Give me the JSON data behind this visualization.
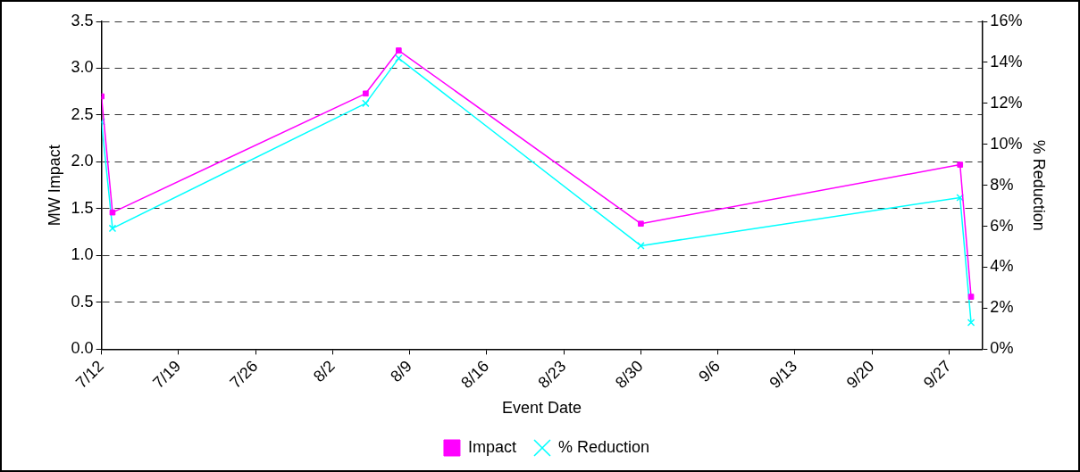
{
  "chart_data": {
    "type": "line",
    "xlabel": "Event Date",
    "ylabel": "MW Impact",
    "y2label": "% Reduction",
    "x": [
      "--07-12",
      "--07-13",
      "--08-05",
      "--08-08",
      "--08-30",
      "--09-28",
      "--09-29"
    ],
    "series": [
      {
        "name": "Impact",
        "color": "#ff00ff",
        "marker": "square",
        "values": [
          2.7,
          1.46,
          2.73,
          3.19,
          1.34,
          1.97,
          0.56
        ]
      },
      {
        "name": "% Reduction",
        "color": "#00ffff",
        "marker": "cross",
        "axis": "y2",
        "values": [
          11.1,
          5.9,
          12.0,
          14.2,
          5.05,
          7.4,
          1.3
        ]
      }
    ],
    "xlim": [
      "--07-12",
      "--09-30"
    ],
    "xticks": [
      {
        "value": "--07-12",
        "label": "7/12"
      },
      {
        "value": "--07-19",
        "label": "7/19"
      },
      {
        "value": "--07-26",
        "label": "7/26"
      },
      {
        "value": "--08-02",
        "label": "8/2"
      },
      {
        "value": "--08-09",
        "label": "8/9"
      },
      {
        "value": "--08-16",
        "label": "8/16"
      },
      {
        "value": "--08-23",
        "label": "8/23"
      },
      {
        "value": "--08-30",
        "label": "8/30"
      },
      {
        "value": "--09-06",
        "label": "9/6"
      },
      {
        "value": "--09-13",
        "label": "9/13"
      },
      {
        "value": "--09-20",
        "label": "9/20"
      },
      {
        "value": "--09-27",
        "label": "9/27"
      }
    ],
    "ylim": [
      0,
      3.5
    ],
    "yticks": [
      {
        "value": 0,
        "label": "0.0"
      },
      {
        "value": 0.5,
        "label": "0.5"
      },
      {
        "value": 1,
        "label": "1.0"
      },
      {
        "value": 1.5,
        "label": "1.5"
      },
      {
        "value": 2,
        "label": "2.0"
      },
      {
        "value": 2.5,
        "label": "2.5"
      },
      {
        "value": 3,
        "label": "3.0"
      },
      {
        "value": 3.5,
        "label": "3.5"
      }
    ],
    "y2lim": [
      0,
      16
    ],
    "y2ticks": [
      {
        "value": 0,
        "label": "0%"
      },
      {
        "value": 2,
        "label": "2%"
      },
      {
        "value": 4,
        "label": "4%"
      },
      {
        "value": 6,
        "label": "6%"
      },
      {
        "value": 8,
        "label": "8%"
      },
      {
        "value": 10,
        "label": "10%"
      },
      {
        "value": 12,
        "label": "12%"
      },
      {
        "value": 14,
        "label": "14%"
      },
      {
        "value": 16,
        "label": "16%"
      }
    ],
    "grid": "y",
    "legend": "bottom",
    "line_style": "solid"
  }
}
